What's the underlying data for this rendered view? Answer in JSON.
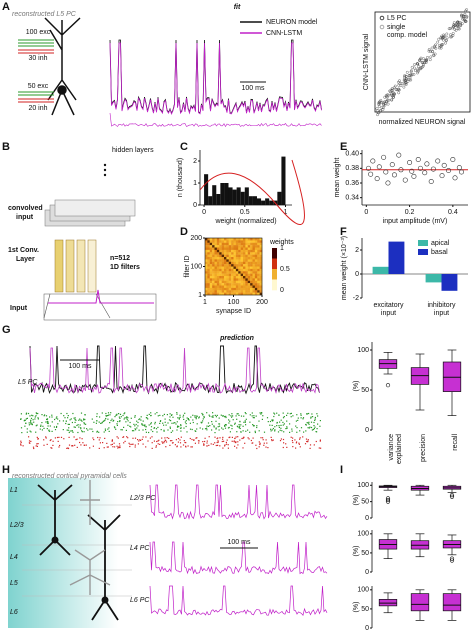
{
  "figure": {
    "A": {
      "label": "A",
      "cell": "reconstructed L5 PC",
      "title": "fit",
      "legend": [
        "NEURON model",
        "CNN-LSTM"
      ],
      "scale": "100 ms",
      "inputs": [
        "100 exc",
        "30 inh",
        "50 exc",
        "20 inh"
      ],
      "scatter": {
        "ylabel": "CNN-LSTM signal",
        "xlabel": "normalized NEURON signal",
        "legend": [
          "L5 PC",
          "single",
          "comp. model"
        ]
      }
    },
    "B": {
      "label": "B",
      "hidden": "hidden layers",
      "convolved": [
        "convolved",
        "input"
      ],
      "conv": [
        "1st Conv.",
        "Layer"
      ],
      "filters": [
        "n=512",
        "1D filters"
      ],
      "input": "Input"
    },
    "C": {
      "label": "C"
    },
    "D": {
      "label": "D"
    },
    "E": {
      "label": "E"
    },
    "F": {
      "label": "F"
    },
    "G": {
      "label": "G",
      "title": "prediction",
      "cell": "L5 PC",
      "scale": "100 ms"
    },
    "H": {
      "label": "H",
      "title": "reconstructed cortical pyramidal cells",
      "layers": [
        "L1",
        "L2/3",
        "L4",
        "L5",
        "L6"
      ],
      "cells": [
        "L2/3 PC",
        "L4 PC",
        "L6 PC"
      ],
      "scale": "100 ms"
    },
    "I": {
      "label": "I"
    }
  },
  "chart_data": [
    {
      "type": "histogram",
      "ylabel": "n (thousand)",
      "xlabel": "weight (normalized)",
      "bins": [
        0,
        0.05,
        0.1,
        0.15,
        0.2,
        0.25,
        0.3,
        0.35,
        0.4,
        0.45,
        0.5,
        0.55,
        0.6,
        0.65,
        0.7,
        0.75,
        0.8,
        0.85,
        0.9,
        0.95,
        1
      ],
      "values": [
        1.4,
        0.4,
        0.9,
        0.5,
        1.0,
        1.0,
        0.8,
        0.7,
        0.8,
        0.6,
        0.8,
        0.4,
        0.4,
        0.3,
        0.2,
        0.3,
        0.2,
        0.2,
        0.6,
        2.2
      ],
      "color": "#111111",
      "xlim": [
        -0.05,
        1.08
      ],
      "ylim": [
        0,
        2.5
      ],
      "xticks": [
        0,
        0.5,
        1
      ],
      "yticks": [
        0,
        1,
        2
      ]
    },
    {
      "type": "heatmap",
      "ylabel": "filter ID",
      "xlabel": "synapse ID",
      "colorbar_label": "weights",
      "xticks": [
        1,
        100,
        200
      ],
      "yticks": [
        1,
        100,
        200
      ],
      "colorbar_ticks": [
        0,
        0.5,
        1
      ]
    },
    {
      "type": "scatter",
      "ylabel": "mean weight",
      "xlabel": "input amplitude (mV)",
      "color": "#333333",
      "line_color": "#d62020",
      "mean": 0.378,
      "x": [
        0.01,
        0.02,
        0.03,
        0.05,
        0.06,
        0.08,
        0.09,
        0.1,
        0.12,
        0.13,
        0.15,
        0.16,
        0.18,
        0.2,
        0.21,
        0.22,
        0.24,
        0.25,
        0.27,
        0.28,
        0.3,
        0.31,
        0.33,
        0.35,
        0.36,
        0.38,
        0.4,
        0.41,
        0.43,
        0.44
      ],
      "values": [
        0.38,
        0.372,
        0.39,
        0.366,
        0.382,
        0.395,
        0.375,
        0.36,
        0.385,
        0.371,
        0.398,
        0.378,
        0.364,
        0.388,
        0.376,
        0.369,
        0.392,
        0.38,
        0.374,
        0.386,
        0.362,
        0.379,
        0.39,
        0.37,
        0.384,
        0.377,
        0.392,
        0.367,
        0.381,
        0.375
      ],
      "xlim": [
        -0.02,
        0.47
      ],
      "ylim": [
        0.33,
        0.405
      ],
      "xticks": [
        0,
        0.2,
        0.4
      ],
      "yticks": [
        0.34,
        0.36,
        0.38,
        {
          "value": 0.4,
          "label": "0.40"
        }
      ]
    },
    {
      "type": "bar",
      "ylabel": "mean weight (×10⁻³)",
      "categories": [
        [
          "excitatory",
          "input"
        ],
        [
          "inhibitory",
          "input"
        ]
      ],
      "series": [
        {
          "name": "apical",
          "color": "#3cb8a8",
          "values": [
            0.6,
            -0.7
          ]
        },
        {
          "name": "basal",
          "color": "#1c2fc0",
          "values": [
            2.7,
            -1.4
          ]
        }
      ],
      "ylim": [
        -2,
        3
      ],
      "yticks": [
        -2,
        0,
        2
      ]
    },
    {
      "type": "box",
      "ylabel": "(%)",
      "color": "#c630d2",
      "categories": [
        [
          "variance",
          "explained"
        ],
        [
          "precision"
        ],
        [
          "recall"
        ]
      ],
      "boxes": [
        {
          "whislo": 70,
          "q1": 77,
          "median": 83,
          "q3": 88,
          "whishi": 97,
          "outliers": [
            56
          ]
        },
        {
          "whislo": 25,
          "q1": 57,
          "median": 68,
          "q3": 78,
          "whishi": 95,
          "outliers": []
        },
        {
          "whislo": 18,
          "q1": 48,
          "median": 66,
          "q3": 85,
          "whishi": 100,
          "outliers": []
        }
      ],
      "ylim": [
        0,
        110
      ],
      "yticks": [
        0,
        50,
        100
      ]
    },
    {
      "type": "box",
      "ylabel": "(%)",
      "color": "#c630d2",
      "boxes": [
        {
          "whislo": 85,
          "q1": 93,
          "median": 96,
          "q3": 98,
          "whishi": 100,
          "outliers": [
            60,
            55,
            50
          ]
        },
        {
          "whislo": 70,
          "q1": 85,
          "median": 90,
          "q3": 97,
          "whishi": 100,
          "outliers": []
        },
        {
          "whislo": 78,
          "q1": 88,
          "median": 92,
          "q3": 97,
          "whishi": 100,
          "outliers": [
            70,
            65
          ]
        }
      ],
      "ylim": [
        0,
        110
      ],
      "yticks": [
        0,
        50,
        100
      ]
    },
    {
      "type": "box",
      "ylabel": "(%)",
      "color": "#c630d2",
      "boxes": [
        {
          "whislo": 35,
          "q1": 60,
          "median": 72,
          "q3": 85,
          "whishi": 100,
          "outliers": []
        },
        {
          "whislo": 40,
          "q1": 60,
          "median": 70,
          "q3": 82,
          "whishi": 100,
          "outliers": []
        },
        {
          "whislo": 45,
          "q1": 63,
          "median": 72,
          "q3": 82,
          "whishi": 97,
          "outliers": [
            30,
            35
          ]
        }
      ],
      "ylim": [
        0,
        110
      ],
      "yticks": [
        0,
        50,
        100
      ]
    },
    {
      "type": "box",
      "ylabel": "(%)",
      "color": "#c630d2",
      "boxes": [
        {
          "whislo": 40,
          "q1": 58,
          "median": 65,
          "q3": 75,
          "whishi": 92,
          "outliers": []
        },
        {
          "whislo": 20,
          "q1": 45,
          "median": 62,
          "q3": 90,
          "whishi": 100,
          "outliers": []
        },
        {
          "whislo": 20,
          "q1": 45,
          "median": 60,
          "q3": 90,
          "whishi": 100,
          "outliers": []
        }
      ],
      "ylim": [
        0,
        110
      ],
      "yticks": [
        0,
        50,
        100
      ]
    }
  ]
}
